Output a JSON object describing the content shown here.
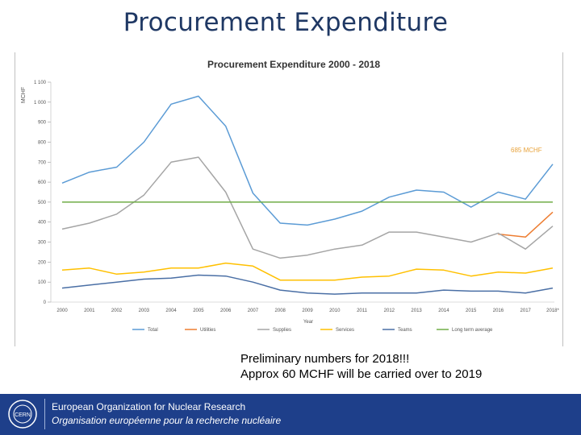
{
  "slide": {
    "title": "Procurement Expenditure",
    "notes": [
      "Preliminary numbers for 2018!!!",
      "Approx 60 MCHF will be carried over to 2019"
    ]
  },
  "footer": {
    "org_en": "European Organization for Nuclear Research",
    "org_fr": "Organisation européenne pour la recherche nucléaire",
    "logo_text": "CERN",
    "background": "#1e3f8a"
  },
  "chart_data": {
    "type": "line",
    "title": "Procurement Expenditure 2000 - 2018",
    "xlabel": "Year",
    "ylabel": "MCHF",
    "ylim": [
      0,
      1100
    ],
    "yticks": [
      0,
      100,
      200,
      300,
      400,
      500,
      600,
      700,
      800,
      900,
      1000,
      1100
    ],
    "ytick_labels": [
      "0",
      "100",
      "200",
      "300",
      "400",
      "500",
      "600",
      "700",
      "800",
      "900",
      "1 000",
      "1 100"
    ],
    "categories": [
      "2000",
      "2001",
      "2002",
      "2003",
      "2004",
      "2005",
      "2006",
      "2007",
      "2008",
      "2009",
      "2010",
      "2011",
      "2012",
      "2013",
      "2014",
      "2015",
      "2016",
      "2017",
      "2018*"
    ],
    "legend_position": "bottom",
    "grid": false,
    "annotations": [
      {
        "text": "685 MCHF",
        "color": "#e8a33c"
      }
    ],
    "series": [
      {
        "name": "Total",
        "color": "#5b9bd5",
        "values": [
          595,
          650,
          675,
          800,
          990,
          1030,
          880,
          545,
          395,
          385,
          415,
          455,
          525,
          560,
          550,
          475,
          550,
          515,
          690
        ]
      },
      {
        "name": "Utilities",
        "color": "#ed7d31",
        "values": [
          null,
          null,
          null,
          null,
          null,
          null,
          null,
          null,
          null,
          null,
          null,
          null,
          null,
          null,
          null,
          null,
          340,
          325,
          450
        ]
      },
      {
        "name": "Supplies",
        "color": "#a5a5a5",
        "values": [
          365,
          395,
          440,
          535,
          700,
          725,
          550,
          265,
          220,
          235,
          265,
          285,
          350,
          350,
          325,
          300,
          345,
          265,
          380
        ]
      },
      {
        "name": "Services",
        "color": "#ffc000",
        "values": [
          160,
          170,
          140,
          150,
          170,
          170,
          195,
          180,
          110,
          110,
          110,
          125,
          130,
          165,
          160,
          130,
          150,
          145,
          170
        ]
      },
      {
        "name": "Teams",
        "color": "#4a6fa5",
        "values": [
          70,
          85,
          100,
          115,
          120,
          135,
          130,
          100,
          60,
          45,
          40,
          45,
          45,
          45,
          60,
          55,
          55,
          45,
          70
        ]
      },
      {
        "name": "Long term average",
        "color": "#70ad47",
        "values": [
          500,
          500,
          500,
          500,
          500,
          500,
          500,
          500,
          500,
          500,
          500,
          500,
          500,
          500,
          500,
          500,
          500,
          500,
          500
        ]
      }
    ]
  }
}
